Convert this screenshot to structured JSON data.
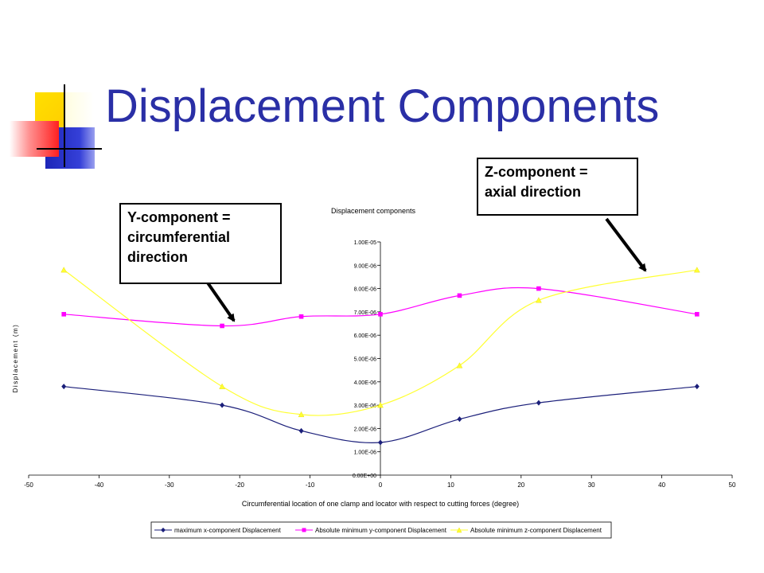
{
  "slide": {
    "title": "Displacement Components",
    "callouts": [
      {
        "text_lines": [
          "Y-component =",
          "circumferential",
          "direction"
        ]
      },
      {
        "text_lines": [
          "Z-component =",
          "axial direction"
        ]
      }
    ]
  },
  "colors": {
    "title": "#2a2fa6",
    "deco_yellow": "#ffd700",
    "deco_blue": "#2c34c8",
    "deco_red": "#ff3030",
    "series_x": "#1b1f7a",
    "series_y": "#ff00ff",
    "series_z": "#ffff33"
  },
  "chart_data": {
    "type": "line",
    "title": "Displacement components",
    "xlabel": "Circumferential location of one clamp and locator with respect to cutting forces (degree)",
    "ylabel": "Displacement (m)",
    "xlim": [
      -50,
      50
    ],
    "ylim": [
      0,
      1e-05
    ],
    "x_ticks": [
      "-50",
      "-40",
      "-30",
      "-20",
      "-10",
      "0",
      "10",
      "20",
      "30",
      "40",
      "50"
    ],
    "x_tick_values": [
      -50,
      -40,
      -30,
      -20,
      -10,
      0,
      10,
      20,
      30,
      40,
      50
    ],
    "y_ticks": [
      "0.00E+00",
      "1.00E-06",
      "2.00E-06",
      "3.00E-06",
      "4.00E-06",
      "5.00E-06",
      "6.00E-06",
      "7.00E-06",
      "8.00E-06",
      "9.00E-06",
      "1.00E-05"
    ],
    "y_tick_values": [
      0,
      1e-06,
      2e-06,
      3e-06,
      4e-06,
      5e-06,
      6e-06,
      7e-06,
      8e-06,
      9e-06,
      1e-05
    ],
    "grid": false,
    "legend_position": "bottom",
    "x": [
      -45,
      -22.5,
      -11.25,
      0,
      11.25,
      22.5,
      45
    ],
    "series": [
      {
        "name": "maximum x-component Displacement",
        "marker": "diamond",
        "color": "#1b1f7a",
        "values": [
          3.8e-06,
          3e-06,
          1.9e-06,
          1.4e-06,
          2.4e-06,
          3.1e-06,
          3.8e-06
        ]
      },
      {
        "name": "Absolute minimum y-component Displacement",
        "marker": "square",
        "color": "#ff00ff",
        "values": [
          6.9e-06,
          6.4e-06,
          6.8e-06,
          6.9e-06,
          7.7e-06,
          8e-06,
          6.9e-06
        ]
      },
      {
        "name": "Absolute minimum z-component Displacement",
        "marker": "triangle",
        "color": "#ffff33",
        "values": [
          8.8e-06,
          3.8e-06,
          2.6e-06,
          3e-06,
          4.7e-06,
          7.5e-06,
          8.8e-06
        ]
      }
    ]
  }
}
